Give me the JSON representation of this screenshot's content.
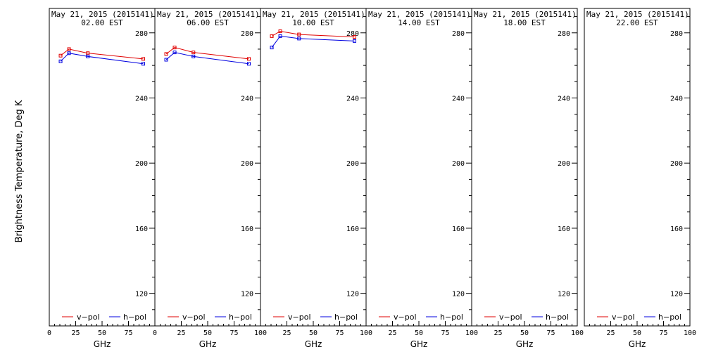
{
  "chart_data": {
    "type": "line",
    "ylabel": "Brightness Temperature, Deg K",
    "xlim": [
      0,
      100
    ],
    "ylim": [
      100,
      295
    ],
    "x_ticks": [
      0,
      25,
      50,
      75,
      100
    ],
    "y_ticks": [
      120,
      160,
      200,
      240,
      280
    ],
    "grid": false,
    "legend_placement": "bottom",
    "series_styles": [
      {
        "name": "v-pol",
        "color": "#e00000"
      },
      {
        "name": "h-pol",
        "color": "#0000e0"
      }
    ],
    "panels": [
      {
        "title_line1": "May 21, 2015 (2015141)",
        "title_line2": "02.00 EST",
        "x_tick_labels": [
          "0",
          "25",
          "50",
          "75",
          ""
        ],
        "xlabel": "GHz",
        "legend": [
          "v−pol",
          "h−pol"
        ],
        "series": [
          {
            "name": "v-pol",
            "x": [
              10.7,
              18.7,
              36.5,
              89.0
            ],
            "y": [
              266.0,
              270.0,
              267.5,
              264.0
            ]
          },
          {
            "name": "h-pol",
            "x": [
              10.7,
              18.7,
              36.5,
              89.0
            ],
            "y": [
              262.5,
              267.5,
              265.5,
              261.0
            ]
          }
        ]
      },
      {
        "title_line1": "May 21, 2015 (2015141)",
        "title_line2": "06.00 EST",
        "x_tick_labels": [
          "0",
          "25",
          "50",
          "75",
          "100"
        ],
        "xlabel": "GHz",
        "legend": [
          "v−pol",
          "h−pol"
        ],
        "series": [
          {
            "name": "v-pol",
            "x": [
              10.7,
              18.7,
              36.5,
              89.0
            ],
            "y": [
              267.0,
              271.0,
              268.0,
              264.0
            ]
          },
          {
            "name": "h-pol",
            "x": [
              10.7,
              18.7,
              36.5,
              89.0
            ],
            "y": [
              263.5,
              268.0,
              265.5,
              261.0
            ]
          }
        ]
      },
      {
        "title_line1": "May 21, 2015 (2015141)",
        "title_line2": "10.00 EST",
        "x_tick_labels": [
          "",
          "25",
          "50",
          "75",
          "100"
        ],
        "xlabel": "GHz",
        "legend": [
          "v−pol",
          "h−pol"
        ],
        "series": [
          {
            "name": "v-pol",
            "x": [
              10.7,
              18.7,
              36.5,
              89.0
            ],
            "y": [
              278.0,
              281.0,
              279.0,
              277.5
            ]
          },
          {
            "name": "h-pol",
            "x": [
              10.7,
              18.7,
              36.5,
              89.0
            ],
            "y": [
              271.0,
              278.0,
              276.5,
              275.0
            ]
          }
        ]
      },
      {
        "title_line1": "May 21, 2015 (2015141)",
        "title_line2": "14.00 EST",
        "x_tick_labels": [
          "",
          "25",
          "50",
          "75",
          "100"
        ],
        "xlabel": "GHz",
        "legend": [
          "v−pol",
          "h−pol"
        ],
        "series": []
      },
      {
        "title_line1": "May 21, 2015 (2015141)",
        "title_line2": "18.00 EST",
        "x_tick_labels": [
          "",
          "25",
          "50",
          "75",
          "100"
        ],
        "xlabel": "GHz",
        "legend": [
          "v−pol",
          "h−pol"
        ],
        "series": []
      },
      {
        "title_line1": "May 21, 2015 (2015141)",
        "title_line2": "22.00 EST",
        "x_tick_labels": [
          "",
          "25",
          "50",
          "75",
          "100"
        ],
        "xlabel": "GHz",
        "legend": [
          "v−pol",
          "h−pol"
        ],
        "series": []
      }
    ]
  }
}
